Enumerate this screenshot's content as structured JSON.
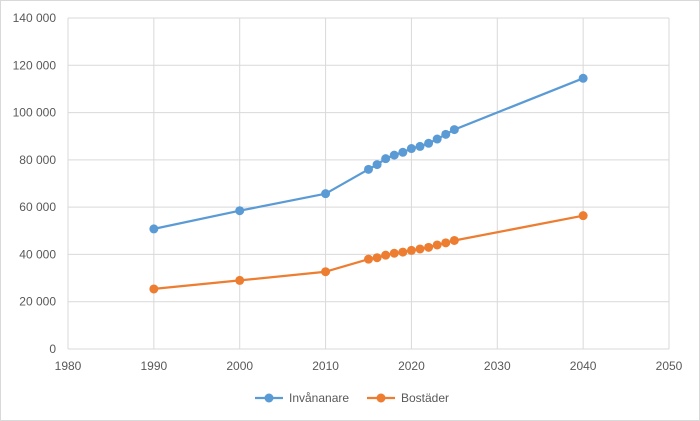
{
  "chart_data": {
    "type": "line",
    "title": "",
    "xlabel": "",
    "ylabel": "",
    "xlim": [
      1980,
      2050
    ],
    "ylim": [
      0,
      140000
    ],
    "x_ticks": [
      1980,
      1990,
      2000,
      2010,
      2020,
      2030,
      2040,
      2050
    ],
    "x_tick_labels": [
      "1980",
      "1990",
      "2000",
      "2010",
      "2020",
      "2030",
      "2040",
      "2050"
    ],
    "y_ticks": [
      0,
      20000,
      40000,
      60000,
      80000,
      100000,
      120000,
      140000
    ],
    "y_tick_labels": [
      "0",
      "20 000",
      "40 000",
      "60 000",
      "80 000",
      "100 000",
      "120 000",
      "140 000"
    ],
    "grid": true,
    "legend_position": "bottom",
    "series": [
      {
        "name": "Invånanare",
        "color": "#5b9bd5",
        "x": [
          1990,
          2000,
          2010,
          2015,
          2016,
          2017,
          2018,
          2019,
          2020,
          2021,
          2022,
          2023,
          2024,
          2025,
          2040
        ],
        "y": [
          50800,
          58500,
          65700,
          76000,
          78000,
          80500,
          82000,
          83200,
          84800,
          85700,
          87000,
          88800,
          90800,
          92800,
          114500
        ]
      },
      {
        "name": "Bostäder",
        "color": "#ed7d31",
        "x": [
          1990,
          2000,
          2010,
          2015,
          2016,
          2017,
          2018,
          2019,
          2020,
          2021,
          2022,
          2023,
          2024,
          2025,
          2040
        ],
        "y": [
          25400,
          29000,
          32700,
          38000,
          38600,
          39700,
          40500,
          41000,
          41700,
          42300,
          43000,
          44000,
          44900,
          45900,
          56400
        ]
      }
    ]
  }
}
